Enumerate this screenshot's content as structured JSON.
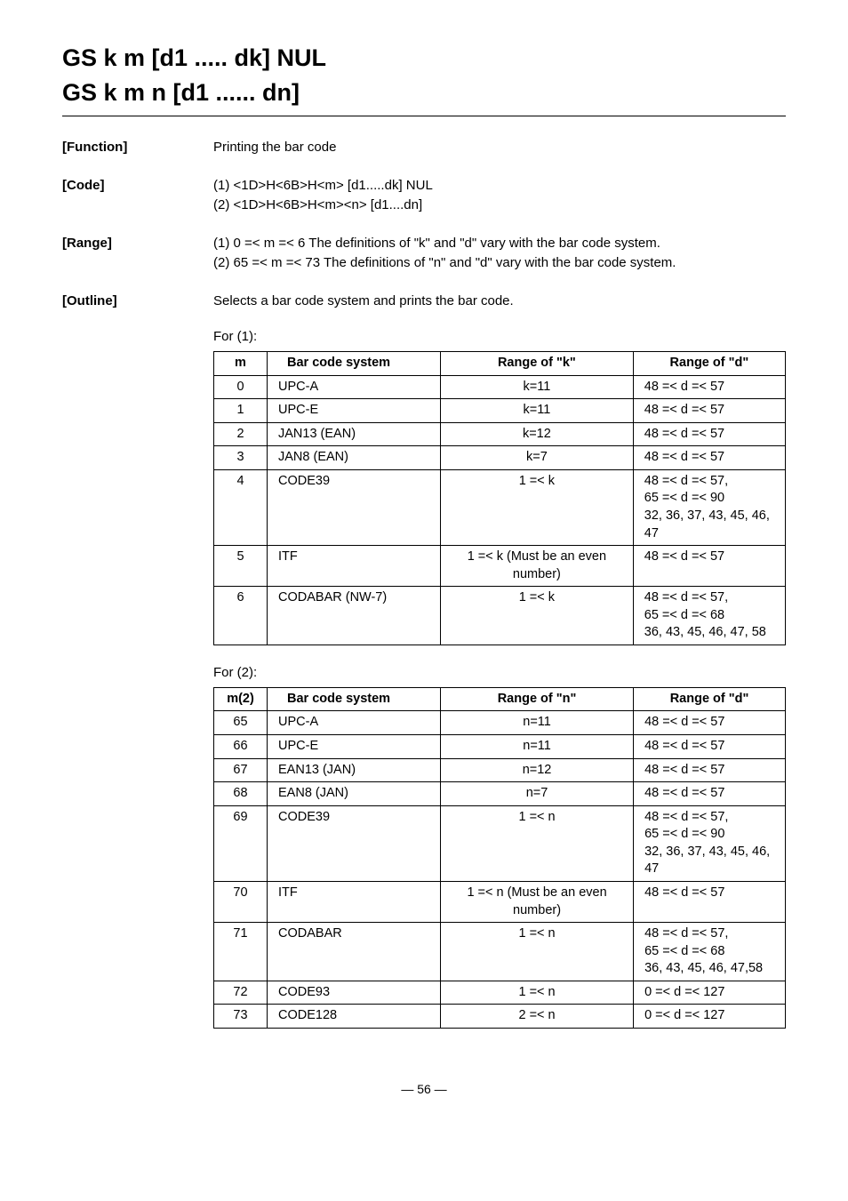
{
  "title1": "GS k m [d1 ..... dk] NUL",
  "title2": "GS k m n [d1 ...... dn]",
  "defs": {
    "function": {
      "label": "[Function]",
      "text": "Printing the bar code"
    },
    "code": {
      "label": "[Code]",
      "line1": "(1) <1D>H<6B>H<m> [d1.....dk] NUL",
      "line2": "(2) <1D>H<6B>H<m><n> [d1....dn]"
    },
    "range": {
      "label": "[Range]",
      "line1": "(1) 0 =< m =< 6 The definitions of \"k\" and \"d\" vary with the bar code system.",
      "line2": "(2) 65 =< m =< 73 The definitions of \"n\" and \"d\" vary with the bar code system."
    },
    "outline": {
      "label": "[Outline]",
      "text": "Selects a bar code system and prints the bar code."
    }
  },
  "for1_label": "For (1):",
  "table1": {
    "headers": {
      "m": "m",
      "sys": "Bar code system",
      "rk": "Range of \"k\"",
      "rd": "Range of \"d\""
    },
    "rows": [
      {
        "m": "0",
        "sys": "UPC-A",
        "rk": "k=11",
        "rd": "48 =< d =< 57"
      },
      {
        "m": "1",
        "sys": "UPC-E",
        "rk": "k=11",
        "rd": "48 =< d =< 57"
      },
      {
        "m": "2",
        "sys": "JAN13 (EAN)",
        "rk": "k=12",
        "rd": "48 =< d =< 57"
      },
      {
        "m": "3",
        "sys": "JAN8 (EAN)",
        "rk": "k=7",
        "rd": "48 =< d =< 57"
      },
      {
        "m": "4",
        "sys": "CODE39",
        "rk": "1 =< k",
        "rd": "48 =< d =< 57,\n65 =< d =< 90\n32, 36, 37, 43, 45, 46, 47"
      },
      {
        "m": "5",
        "sys": "ITF",
        "rk": "1 =< k (Must be an even number)",
        "rd": "48 =< d =< 57"
      },
      {
        "m": "6",
        "sys": "CODABAR (NW-7)",
        "rk": "1 =< k",
        "rd": "48 =< d =< 57,\n65 =< d =< 68\n36, 43, 45, 46, 47, 58"
      }
    ]
  },
  "for2_label": "For (2):",
  "table2": {
    "headers": {
      "m": "m(2)",
      "sys": "Bar code system",
      "rk": "Range of \"n\"",
      "rd": "Range of \"d\""
    },
    "rows": [
      {
        "m": "65",
        "sys": "UPC-A",
        "rk": "n=11",
        "rd": "48 =< d =< 57"
      },
      {
        "m": "66",
        "sys": "UPC-E",
        "rk": "n=11",
        "rd": "48 =< d =< 57"
      },
      {
        "m": "67",
        "sys": "EAN13 (JAN)",
        "rk": "n=12",
        "rd": "48 =< d =< 57"
      },
      {
        "m": "68",
        "sys": "EAN8 (JAN)",
        "rk": "n=7",
        "rd": "48 =< d =< 57"
      },
      {
        "m": "69",
        "sys": "CODE39",
        "rk": "1 =< n",
        "rd": "48 =< d =< 57,\n65 =< d =< 90\n32, 36, 37, 43, 45, 46, 47"
      },
      {
        "m": "70",
        "sys": "ITF",
        "rk": "1 =< n (Must be an even number)",
        "rd": "48 =< d =< 57"
      },
      {
        "m": "71",
        "sys": "CODABAR",
        "rk": "1 =< n",
        "rd": "48 =< d =< 57,\n65 =< d =< 68\n36, 43, 45, 46, 47,58"
      },
      {
        "m": "72",
        "sys": "CODE93",
        "rk": "1 =< n",
        "rd": "0 =< d =< 127"
      },
      {
        "m": "73",
        "sys": "CODE128",
        "rk": "2 =< n",
        "rd": "0 =< d =< 127"
      }
    ]
  },
  "footer": "— 56 —"
}
